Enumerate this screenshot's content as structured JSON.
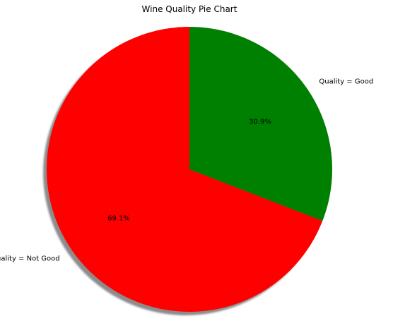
{
  "chart_data": {
    "type": "pie",
    "title": "Wine Quality Pie Chart",
    "labels": [
      "Quality = Not Good",
      "Quality = Good"
    ],
    "values": [
      69.1,
      30.9
    ],
    "percent_labels": [
      "69.1%",
      "30.9%"
    ],
    "colors": [
      "#ff0000",
      "#008000"
    ],
    "shadow": true,
    "start_angle_deg": 90
  }
}
